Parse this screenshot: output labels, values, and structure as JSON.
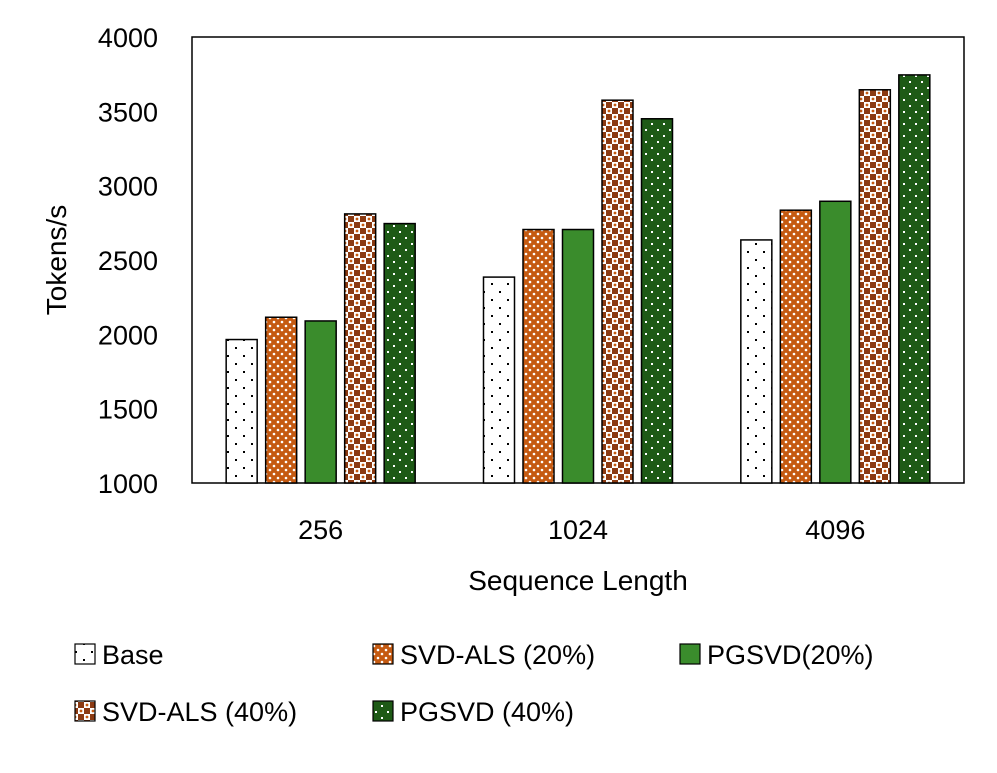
{
  "chart_data": {
    "type": "bar",
    "title": "",
    "xlabel": "Sequence Length",
    "ylabel": "Tokens/s",
    "ylim": [
      1000,
      4000
    ],
    "yticks": [
      1000,
      1500,
      2000,
      2500,
      3000,
      3500,
      4000
    ],
    "categories": [
      "256",
      "1024",
      "4096"
    ],
    "grid": false,
    "legend_position": "bottom",
    "series": [
      {
        "name": "Base",
        "values": [
          1965,
          2385,
          2635
        ],
        "pattern": "sparse-dots",
        "color": "#ffffff"
      },
      {
        "name": "SVD-ALS (20%)",
        "values": [
          2115,
          2705,
          2835
        ],
        "pattern": "dots-on-orange",
        "color": "#c55a11"
      },
      {
        "name": "PGSVD(20%)",
        "values": [
          2090,
          2705,
          2895
        ],
        "pattern": "solid",
        "color": "#3a8c2c"
      },
      {
        "name": "SVD-ALS (40%)",
        "values": [
          2810,
          3575,
          3645
        ],
        "pattern": "checker",
        "color": "#8b3a12"
      },
      {
        "name": "PGSVD (40%)",
        "values": [
          2745,
          3450,
          3745
        ],
        "pattern": "dots-on-darkgreen",
        "color": "#1e5a16"
      }
    ]
  }
}
